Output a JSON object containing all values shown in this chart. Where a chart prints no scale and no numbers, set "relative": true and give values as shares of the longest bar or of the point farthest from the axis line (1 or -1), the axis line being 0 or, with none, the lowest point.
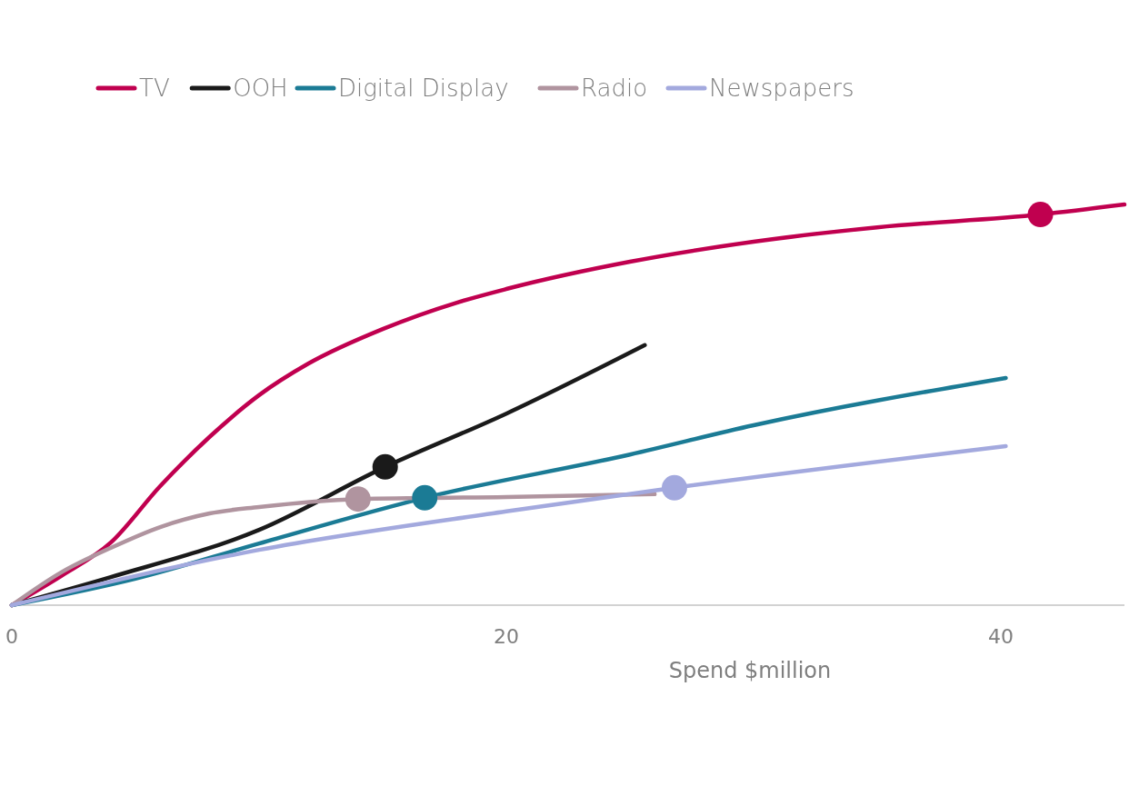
{
  "chart_data": {
    "type": "line",
    "relative": true,
    "xlabel": "Spend $million",
    "xlim": [
      0,
      45
    ],
    "xticks": [
      0,
      20,
      40
    ],
    "legend": "top left",
    "line_style": "solid",
    "series": [
      {
        "name": "TV",
        "color": "#c0004f",
        "marker": "none",
        "x": [
          0,
          2,
          4,
          6,
          8,
          10,
          12,
          15,
          18,
          20,
          25,
          30,
          35,
          41.6,
          45
        ],
        "values": [
          0,
          0.073,
          0.156,
          0.297,
          0.42,
          0.524,
          0.603,
          0.689,
          0.755,
          0.789,
          0.857,
          0.907,
          0.943,
          0.975,
          1.0
        ]
      },
      {
        "name": "OOH",
        "color": "#1a1a1a",
        "marker": "none",
        "x": [
          0,
          4,
          10,
          15.1,
          20,
          25.6
        ],
        "values": [
          0,
          0.07,
          0.188,
          0.345,
          0.478,
          0.649
        ]
      },
      {
        "name": "Digital Display",
        "color": "#1b7b95",
        "marker": "none",
        "x": [
          0,
          5,
          10,
          16.7,
          25,
          30,
          40.2
        ],
        "values": [
          0,
          0.066,
          0.154,
          0.268,
          0.376,
          0.449,
          0.567
        ]
      },
      {
        "name": "Radio",
        "color": "#b0949f",
        "marker": "none",
        "x": [
          0,
          2,
          4,
          6,
          8,
          10,
          14,
          20,
          26
        ],
        "values": [
          0,
          0.082,
          0.143,
          0.195,
          0.229,
          0.245,
          0.265,
          0.27,
          0.277
        ]
      },
      {
        "name": "Newspapers",
        "color": "#a3a9de",
        "marker": "none",
        "x": [
          0,
          10,
          20,
          26.8,
          40.2
        ],
        "values": [
          0,
          0.138,
          0.234,
          0.293,
          0.397
        ]
      },
      {
        "type": "scatter",
        "color": "#b0949f",
        "marker": "circle",
        "x": [
          14
        ],
        "values": [
          0.265
        ]
      },
      {
        "type": "scatter",
        "color": "#1a1a1a",
        "marker": "circle",
        "x": [
          15.1
        ],
        "values": [
          0.345
        ]
      },
      {
        "type": "scatter",
        "color": "#1b7b95",
        "marker": "circle",
        "x": [
          16.7
        ],
        "values": [
          0.268
        ]
      },
      {
        "type": "scatter",
        "color": "#a3a9de",
        "marker": "circle",
        "x": [
          26.8
        ],
        "values": [
          0.293
        ]
      },
      {
        "type": "scatter",
        "color": "#c0004f",
        "marker": "circle",
        "x": [
          41.6
        ],
        "values": [
          0.975
        ]
      }
    ]
  }
}
